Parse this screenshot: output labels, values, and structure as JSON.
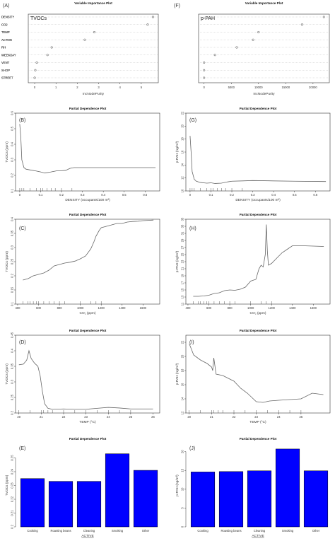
{
  "chart_data": [
    {
      "id": "A",
      "panel": "(A)",
      "type": "scatter",
      "subtype": "dotchart",
      "title": "Variable Importance Plot",
      "tag": "TVOCs",
      "xlabel": "IncNodePurity",
      "variables": [
        "DENSITY",
        "CO2",
        "TEMP",
        "ACTIVE",
        "RH",
        "WEEKDAY",
        "VENT",
        "SHOP",
        "STREET"
      ],
      "values": [
        5.55,
        5.3,
        2.8,
        2.35,
        0.8,
        0.6,
        0.1,
        0.03,
        0.0
      ],
      "xlim": [
        -0.3,
        5.8
      ],
      "xticks": [
        0,
        1,
        2,
        3,
        4,
        5
      ]
    },
    {
      "id": "F",
      "panel": "(F)",
      "type": "scatter",
      "subtype": "dotchart",
      "title": "Variable Importance Plot",
      "tag": "p-PAH",
      "xlabel": "IncNodePurity",
      "variables": [
        "DENSITY",
        "CO2",
        "TEMP",
        "ACTIVE",
        "RH",
        "WEEKDAY",
        "VENT",
        "SHOP",
        "STREET"
      ],
      "values": [
        22000,
        18000,
        10000,
        9000,
        6000,
        2000,
        0,
        0,
        0
      ],
      "xlim": [
        -1000,
        23000
      ],
      "xticks": [
        0,
        5000,
        10000,
        15000,
        20000
      ]
    },
    {
      "id": "B",
      "panel": "(B)",
      "type": "line",
      "title": "Partial Dependence Plot",
      "xlabel": "DENSITY (occupants/100 m²)",
      "ylabel": "TVOCs (ppm)",
      "xlim": [
        -0.02,
        0.67
      ],
      "ylim": [
        0.1,
        0.6
      ],
      "xticks": [
        0.0,
        0.1,
        0.2,
        0.3,
        0.4,
        0.5,
        0.6
      ],
      "yticks": [
        0.1,
        0.2,
        0.3,
        0.4,
        0.5,
        0.6
      ],
      "x": [
        0.0,
        0.005,
        0.01,
        0.02,
        0.03,
        0.05,
        0.08,
        0.1,
        0.12,
        0.15,
        0.18,
        0.2,
        0.22,
        0.24,
        0.26,
        0.3,
        0.4,
        0.5,
        0.65
      ],
      "y": [
        0.53,
        0.45,
        0.3,
        0.25,
        0.24,
        0.235,
        0.228,
        0.222,
        0.215,
        0.222,
        0.23,
        0.23,
        0.232,
        0.245,
        0.25,
        0.25,
        0.25,
        0.25,
        0.25
      ],
      "rug": [
        0.0,
        0.01,
        0.02,
        0.05,
        0.08,
        0.1,
        0.11,
        0.13,
        0.15,
        0.17,
        0.2,
        0.25
      ]
    },
    {
      "id": "G",
      "panel": "(G)",
      "type": "line",
      "title": "Partial Dependence Plot",
      "xlabel": "DENSITY (occupants/100 m²)",
      "ylabel": "p-PAH (ng/m³)",
      "xlim": [
        -0.02,
        0.67
      ],
      "ylim": [
        10,
        22
      ],
      "xticks": [
        0.0,
        0.1,
        0.2,
        0.3,
        0.4,
        0.5,
        0.6
      ],
      "yticks": [
        10,
        12,
        14,
        16,
        18,
        20,
        22
      ],
      "x": [
        0.0,
        0.005,
        0.01,
        0.02,
        0.03,
        0.05,
        0.08,
        0.1,
        0.12,
        0.15,
        0.18,
        0.2,
        0.25,
        0.3,
        0.4,
        0.5,
        0.65
      ],
      "y": [
        18.5,
        16.0,
        13.0,
        11.8,
        11.5,
        11.3,
        11.2,
        11.25,
        11.15,
        11.2,
        11.4,
        11.5,
        11.55,
        11.6,
        11.55,
        11.5,
        11.45
      ],
      "rug": [
        0.0,
        0.01,
        0.02,
        0.05,
        0.08,
        0.1,
        0.11,
        0.13,
        0.15,
        0.17,
        0.2,
        0.25
      ]
    },
    {
      "id": "C",
      "panel": "(C)",
      "type": "line",
      "title": "Partial Dependence Plot",
      "xlabel": "CO₂ (ppm)",
      "ylabel": "TVOCs (ppm)",
      "xlim": [
        380,
        1760
      ],
      "ylim": [
        0.1,
        0.4
      ],
      "xticks": [
        400,
        600,
        800,
        1000,
        1200,
        1400,
        1600
      ],
      "yticks": [
        0.1,
        0.15,
        0.2,
        0.25,
        0.3,
        0.35,
        0.4
      ],
      "x": [
        450,
        500,
        550,
        600,
        650,
        700,
        750,
        800,
        850,
        900,
        950,
        1000,
        1050,
        1100,
        1130,
        1150,
        1180,
        1200,
        1250,
        1300,
        1350,
        1400,
        1450,
        1500,
        1550,
        1600,
        1650,
        1700
      ],
      "y": [
        0.185,
        0.19,
        0.2,
        0.205,
        0.21,
        0.22,
        0.235,
        0.24,
        0.245,
        0.248,
        0.252,
        0.26,
        0.27,
        0.295,
        0.32,
        0.34,
        0.36,
        0.37,
        0.375,
        0.38,
        0.385,
        0.385,
        0.39,
        0.392,
        0.393,
        0.395,
        0.396,
        0.397
      ],
      "rug": [
        450,
        500,
        520,
        550,
        580,
        600,
        650,
        700,
        750,
        800,
        850,
        1000,
        1100,
        1150,
        1200
      ]
    },
    {
      "id": "H",
      "panel": "(H)",
      "type": "line",
      "title": "Partial Dependence Plot",
      "xlabel": "CO₂ (ppm)",
      "ylabel": "p-PAH (ng/m³)",
      "xlim": [
        380,
        1760
      ],
      "ylim": [
        11,
        35
      ],
      "xticks": [
        400,
        600,
        800,
        1000,
        1200,
        1400,
        1600
      ],
      "yticks": [
        11,
        13,
        15,
        17,
        19,
        21,
        23,
        25,
        27,
        29,
        31,
        33,
        35
      ],
      "x": [
        450,
        500,
        550,
        600,
        650,
        700,
        750,
        800,
        850,
        900,
        950,
        1000,
        1050,
        1080,
        1100,
        1120,
        1140,
        1150,
        1160,
        1170,
        1200,
        1250,
        1300,
        1350,
        1400,
        1500,
        1600,
        1700
      ],
      "y": [
        13.2,
        13.2,
        13.3,
        13.5,
        14.0,
        14.2,
        14.8,
        15.0,
        14.9,
        15.2,
        15.8,
        17.5,
        18.0,
        21.0,
        22.0,
        21.5,
        25.0,
        33.5,
        26.0,
        22.0,
        22.5,
        24.0,
        25.5,
        26.5,
        27.5,
        27.5,
        27.4,
        27.3
      ],
      "rug": [
        450,
        500,
        520,
        550,
        580,
        600,
        650,
        700,
        750,
        800,
        850,
        1000,
        1100,
        1150,
        1200
      ]
    },
    {
      "id": "D",
      "panel": "(D)",
      "type": "line",
      "title": "Partial Dependence Plot",
      "xlabel": "TEMP (°C)",
      "ylabel": "TVOCs (ppm)",
      "xlim": [
        19.85,
        26.3
      ],
      "ylim": [
        0.2,
        0.45
      ],
      "xticks": [
        20,
        21,
        22,
        23,
        24,
        25,
        26
      ],
      "yticks": [
        0.2,
        0.25,
        0.3,
        0.35,
        0.4,
        0.45
      ],
      "x": [
        20.0,
        20.2,
        20.35,
        20.45,
        20.55,
        20.7,
        20.85,
        20.95,
        21.05,
        21.15,
        21.3,
        21.5,
        22.0,
        22.5,
        23.0,
        23.5,
        24.0,
        24.5,
        25.0,
        25.5,
        26.0
      ],
      "y": [
        0.355,
        0.357,
        0.37,
        0.4,
        0.375,
        0.36,
        0.35,
        0.32,
        0.27,
        0.23,
        0.215,
        0.212,
        0.213,
        0.212,
        0.212,
        0.215,
        0.218,
        0.216,
        0.213,
        0.213,
        0.213
      ],
      "rug": [
        20.0,
        20.5,
        21.0,
        21.1,
        21.3,
        21.5,
        22.0,
        22.5,
        23.0,
        23.5,
        24.0,
        24.5,
        25.0
      ]
    },
    {
      "id": "I",
      "panel": "(I)",
      "type": "line",
      "title": "Partial Dependence Plot",
      "xlabel": "TEMP (°C)",
      "ylabel": "p-PAH (ng/m³)",
      "xlim": [
        19.85,
        26.3
      ],
      "ylim": [
        12,
        23
      ],
      "xticks": [
        20,
        21,
        22,
        23,
        24,
        25
      ],
      "yticks": [
        12,
        14,
        16,
        18,
        20,
        22
      ],
      "x": [
        20.0,
        20.2,
        20.5,
        20.8,
        21.0,
        21.05,
        21.1,
        21.2,
        21.5,
        22.0,
        22.3,
        22.6,
        22.8,
        23.0,
        23.3,
        23.6,
        24.0,
        24.5,
        25.0,
        25.5,
        26.0
      ],
      "y": [
        21.8,
        20.2,
        19.5,
        19.0,
        18.5,
        18.0,
        19.8,
        17.5,
        17.3,
        16.5,
        15.5,
        14.8,
        14.2,
        13.6,
        13.5,
        13.7,
        13.8,
        13.9,
        14.0,
        14.8,
        14.6
      ],
      "rug": [
        20.0,
        20.5,
        21.0,
        21.1,
        21.3,
        21.5,
        22.0,
        22.5,
        23.0,
        23.5,
        24.0,
        24.5,
        25.0
      ]
    },
    {
      "id": "E",
      "panel": "(E)",
      "type": "bar",
      "title": "Partial Dependence Plot",
      "xlabel": "ACTIVE",
      "ylabel": "TVOCs (ppm)",
      "categories": [
        "Cooking",
        "Roasting beans",
        "Cleaning",
        "Smoking",
        "Other"
      ],
      "values": [
        0.235,
        0.233,
        0.233,
        0.253,
        0.241
      ],
      "ylim": [
        0.2,
        0.26
      ],
      "yticks": [
        0.2,
        0.21,
        0.22,
        0.23,
        0.24,
        0.25
      ],
      "color": "#0000ff"
    },
    {
      "id": "J",
      "panel": "(J)",
      "type": "bar",
      "title": "Partial Dependence Plot",
      "xlabel": "ACTIVE",
      "ylabel": "p-PAH (ng/m³)",
      "categories": [
        "Cooking",
        "Roasting beans",
        "Cleaning",
        "Smoking",
        "Other"
      ],
      "values": [
        14.6,
        14.7,
        14.9,
        20.7,
        14.9
      ],
      "ylim": [
        0,
        22
      ],
      "yticks": [
        0,
        5,
        10,
        15,
        20
      ],
      "color": "#0000ff"
    }
  ]
}
